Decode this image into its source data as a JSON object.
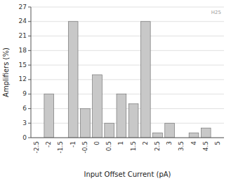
{
  "chart_data": {
    "type": "bar",
    "categories": [
      "-2.5",
      "-2",
      "-1.5",
      "-1",
      "-0.5",
      "0",
      "0.5",
      "1",
      "1.5",
      "2",
      "2.5",
      "3",
      "3.5",
      "4",
      "4.5",
      "5"
    ],
    "values": [
      0,
      9,
      0,
      24,
      6,
      13,
      3,
      9,
      7,
      24,
      1,
      3,
      0,
      1,
      2,
      0
    ],
    "color": "#c8c8c8",
    "xlabel": "Input Offset Current (pA)",
    "ylabel": "Amplifiers (%)",
    "ylim": [
      0,
      27
    ],
    "yticks": [
      0,
      3,
      6,
      9,
      12,
      15,
      18,
      21,
      24,
      27
    ],
    "grid": true,
    "annotations": [
      "H25"
    ]
  }
}
